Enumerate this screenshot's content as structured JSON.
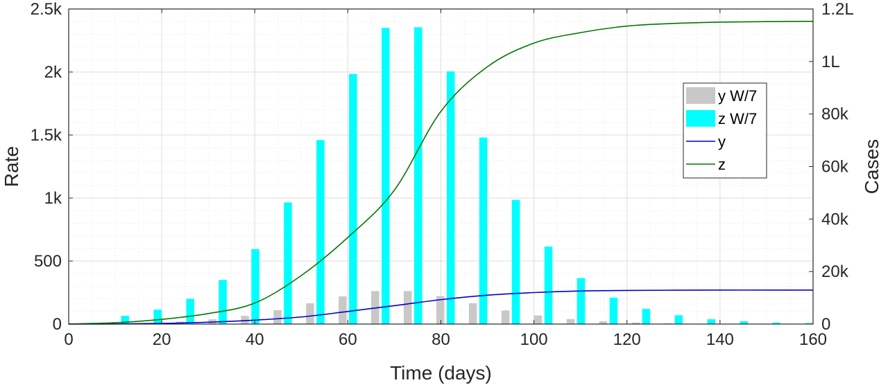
{
  "chart_data": {
    "type": "bar+line",
    "xlabel": "Time (days)",
    "ylabel_left": "Rate",
    "ylabel_right": "Cases",
    "xlim": [
      0,
      160
    ],
    "ylim_left": [
      0,
      2500
    ],
    "ylim_right": [
      0,
      120000
    ],
    "x_ticks": [
      0,
      20,
      40,
      60,
      80,
      100,
      120,
      140,
      160
    ],
    "x_tick_labels": [
      "0",
      "20",
      "40",
      "60",
      "80",
      "100",
      "120",
      "140",
      "160"
    ],
    "y_left_ticks": [
      0,
      500,
      1000,
      1500,
      2000,
      2500
    ],
    "y_left_tick_labels": [
      "0",
      "500",
      "1k",
      "1.5k",
      "2k",
      "2.5k"
    ],
    "y_right_ticks": [
      0,
      20000,
      40000,
      60000,
      80000,
      100000,
      120000
    ],
    "y_right_tick_labels": [
      "0",
      "20k",
      "40k",
      "60k",
      "80k",
      "1L",
      "1.2L"
    ],
    "grid": true,
    "legend_position": "right",
    "bar_series": [
      {
        "name": "y W/7",
        "color": "#c8c8c8",
        "axis": "left",
        "x": [
          4,
          11,
          18,
          25,
          32,
          39,
          46,
          53,
          60,
          67,
          74,
          81,
          88,
          95,
          102,
          109,
          116,
          123,
          130,
          137,
          144,
          151,
          158
        ],
        "values": [
          2,
          5,
          10,
          20,
          38,
          65,
          110,
          165,
          220,
          262,
          262,
          222,
          165,
          108,
          68,
          40,
          22,
          12,
          6,
          3,
          2,
          1,
          1
        ]
      },
      {
        "name": "z W/7",
        "color": "#00ffff",
        "axis": "left",
        "x": [
          4,
          11,
          18,
          25,
          32,
          39,
          46,
          53,
          60,
          67,
          74,
          81,
          88,
          95,
          102,
          109,
          116,
          123,
          130,
          137,
          144,
          151,
          158
        ],
        "values": [
          10,
          65,
          115,
          200,
          350,
          595,
          965,
          1460,
          1985,
          2350,
          2355,
          2005,
          1480,
          985,
          615,
          365,
          210,
          120,
          70,
          38,
          22,
          12,
          8
        ]
      }
    ],
    "line_series": [
      {
        "name": "y",
        "color": "#0000cc",
        "axis": "right",
        "x": [
          0,
          10,
          20,
          30,
          40,
          50,
          60,
          70,
          80,
          90,
          100,
          110,
          120,
          130,
          140,
          150,
          160
        ],
        "values": [
          0,
          60,
          250,
          700,
          1500,
          2700,
          4800,
          7000,
          9300,
          11000,
          12000,
          12600,
          12800,
          12900,
          12950,
          12950,
          12950
        ]
      },
      {
        "name": "z",
        "color": "#007700",
        "axis": "right",
        "x": [
          0,
          10,
          20,
          30,
          40,
          50,
          60,
          70,
          80,
          90,
          100,
          110,
          120,
          130,
          140,
          150,
          160
        ],
        "values": [
          0,
          500,
          1800,
          4000,
          8000,
          18500,
          33000,
          51000,
          81000,
          98000,
          107000,
          111000,
          113500,
          114500,
          115000,
          115200,
          115300
        ]
      }
    ]
  }
}
